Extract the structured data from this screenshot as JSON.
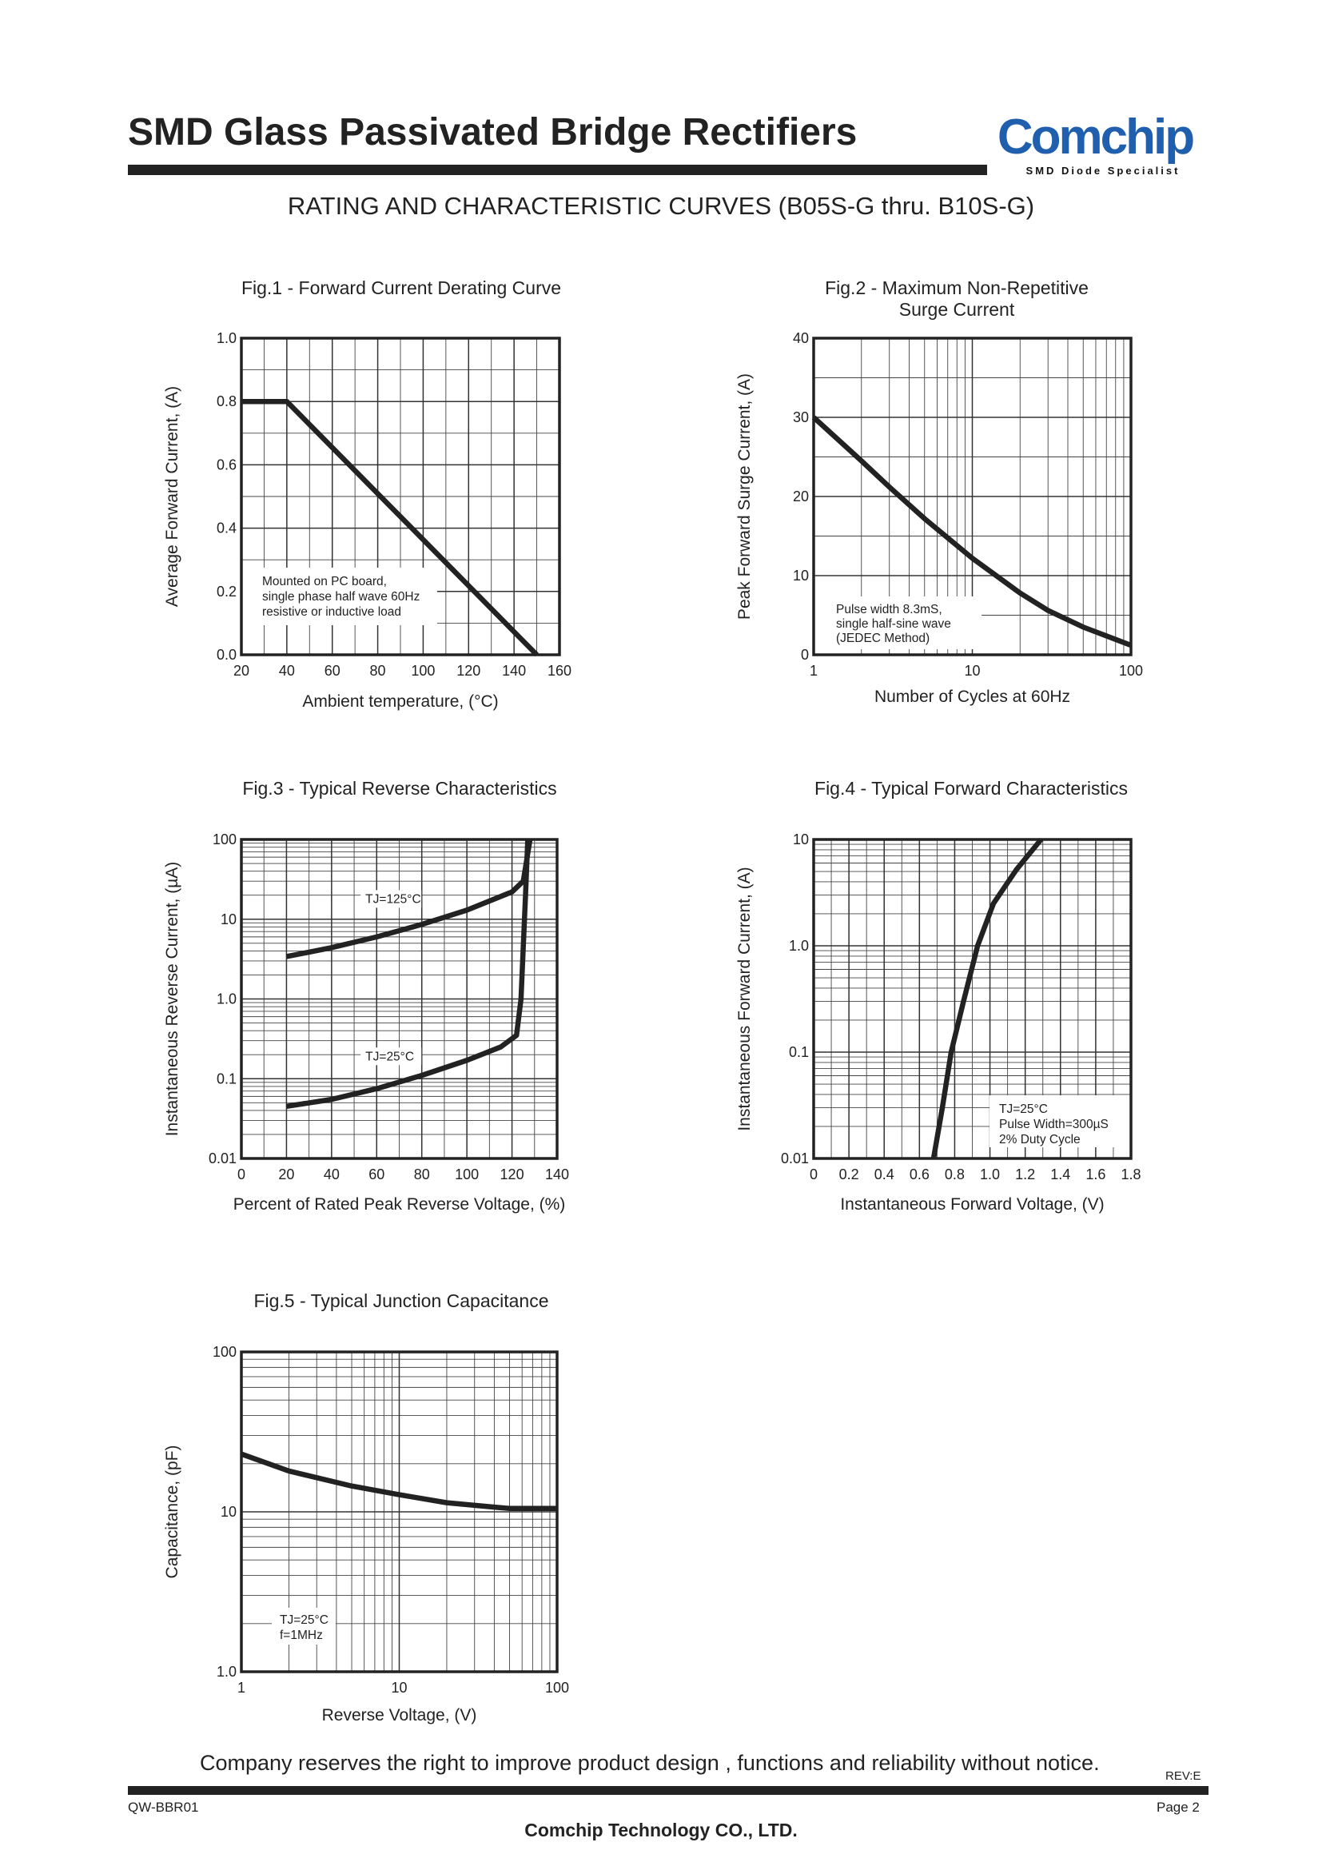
{
  "header": {
    "title": "SMD Glass Passivated Bridge Rectifiers",
    "subtitle": "RATING AND CHARACTERISTIC CURVES (B05S-G thru. B10S-G)"
  },
  "logo": {
    "name": "Comchip",
    "tagline": "SMD Diode Specialist",
    "color": "#1f5fae"
  },
  "footer": {
    "notice": "Company reserves the right to improve product design , functions and reliability without notice.",
    "revision": "REV:E",
    "doc_code": "QW-BBR01",
    "page": "Page 2",
    "company": "Comchip Technology CO., LTD."
  },
  "chart_data": [
    {
      "id": "fig1",
      "type": "line",
      "title": "Fig.1 - Forward Current Derating Curve",
      "xlabel": "Ambient temperature, (°C)",
      "ylabel": "Average Forward Current, (A)",
      "xscale": "linear",
      "yscale": "linear",
      "xlim": [
        20,
        160
      ],
      "ylim": [
        0.0,
        1.0
      ],
      "xticks": [
        20,
        40,
        60,
        80,
        100,
        120,
        140,
        160
      ],
      "xticklabels": [
        "20",
        "40",
        "60",
        "80",
        "100",
        "120",
        "140",
        "160"
      ],
      "yticks": [
        0,
        0.2,
        0.4,
        0.6,
        0.8,
        1.0
      ],
      "yticklabels": [
        "0.0",
        "0.2",
        "0.4",
        "0.6",
        "0.8",
        "1.0"
      ],
      "grid": true,
      "annotation": [
        "Mounted on PC board,",
        "single phase half wave 60Hz",
        "resistive or inductive load"
      ],
      "series": [
        {
          "x": [
            20,
            40,
            150
          ],
          "y": [
            0.8,
            0.8,
            0.0
          ]
        }
      ]
    },
    {
      "id": "fig2",
      "type": "line",
      "title": "Fig.2 - Maximum Non-Repetitive",
      "title2": "Surge Current",
      "xlabel": "Number of Cycles at 60Hz",
      "ylabel": "Peak Forward Surge Current, (A)",
      "xscale": "log",
      "yscale": "linear",
      "xlim": [
        1,
        100
      ],
      "ylim": [
        0,
        40
      ],
      "xticks": [
        1,
        10,
        100
      ],
      "xticklabels": [
        "1",
        "10",
        "100"
      ],
      "yticks": [
        0,
        10,
        20,
        30,
        40
      ],
      "yticklabels": [
        "0",
        "10",
        "20",
        "30",
        "40"
      ],
      "grid": true,
      "annotation": [
        "Pulse width 8.3mS,",
        "single half-sine wave",
        "(JEDEC Method)"
      ],
      "series": [
        {
          "x": [
            1,
            2,
            3,
            5,
            10,
            20,
            30,
            50,
            100
          ],
          "y": [
            30,
            24.5,
            21.2,
            17.2,
            12.2,
            7.8,
            5.6,
            3.5,
            1.2
          ]
        }
      ]
    },
    {
      "id": "fig3",
      "type": "line",
      "title": "Fig.3 - Typical Reverse Characteristics",
      "xlabel": "Percent of Rated Peak Reverse Voltage, (%)",
      "ylabel": "Instantaneous Reverse Current, (µA)",
      "xscale": "linear",
      "yscale": "log",
      "xlim": [
        0,
        140
      ],
      "ylim": [
        0.01,
        100
      ],
      "xticks": [
        0,
        20,
        40,
        60,
        80,
        100,
        120,
        140
      ],
      "xticklabels": [
        "0",
        "20",
        "40",
        "60",
        "80",
        "100",
        "120",
        "140"
      ],
      "yticks": [
        0.01,
        0.1,
        1,
        10,
        100
      ],
      "yticklabels": [
        "0.01",
        "0.1",
        "1.0",
        "10",
        "100"
      ],
      "grid": true,
      "series": [
        {
          "name": "TJ=125°C",
          "label_pos": [
            55,
            16
          ],
          "x": [
            20,
            40,
            60,
            80,
            100,
            120,
            125,
            128
          ],
          "y": [
            3.4,
            4.4,
            6.0,
            8.6,
            13,
            22,
            30,
            100
          ]
        },
        {
          "name": "TJ=25°C",
          "label_pos": [
            55,
            0.17
          ],
          "x": [
            20,
            40,
            60,
            80,
            100,
            115,
            122,
            124,
            126,
            127
          ],
          "y": [
            0.045,
            0.055,
            0.075,
            0.11,
            0.17,
            0.25,
            0.35,
            1.0,
            20,
            100
          ]
        }
      ]
    },
    {
      "id": "fig4",
      "type": "line",
      "title": "Fig.4 - Typical Forward Characteristics",
      "xlabel": "Instantaneous Forward Voltage, (V)",
      "ylabel": "Instantaneous Forward Current, (A)",
      "xscale": "linear",
      "yscale": "log",
      "xlim": [
        0,
        1.8
      ],
      "ylim": [
        0.01,
        10
      ],
      "xticks": [
        0,
        0.2,
        0.4,
        0.6,
        0.8,
        1.0,
        1.2,
        1.4,
        1.6,
        1.8
      ],
      "xticklabels": [
        "0",
        "0.2",
        "0.4",
        "0.6",
        "0.8",
        "1.0",
        "1.2",
        "1.4",
        "1.6",
        "1.8"
      ],
      "yticks": [
        0.01,
        0.1,
        1,
        10
      ],
      "yticklabels": [
        "0.01",
        "0.1",
        "1.0",
        "10"
      ],
      "grid": true,
      "annotation": [
        "TJ=25°C",
        "Pulse Width=300µS",
        "2% Duty Cycle"
      ],
      "series": [
        {
          "x": [
            0.68,
            0.73,
            0.78,
            0.85,
            0.93,
            1.02,
            1.15,
            1.29
          ],
          "y": [
            0.01,
            0.03,
            0.1,
            0.3,
            1.0,
            2.5,
            5.2,
            10
          ]
        }
      ]
    },
    {
      "id": "fig5",
      "type": "line",
      "title": "Fig.5 - Typical Junction Capacitance",
      "xlabel": "Reverse Voltage, (V)",
      "ylabel": "Capacitance, (pF)",
      "xscale": "log",
      "yscale": "log",
      "xlim": [
        1,
        100
      ],
      "ylim": [
        1.0,
        100
      ],
      "xticks": [
        1,
        10,
        100
      ],
      "xticklabels": [
        "1",
        "10",
        "100"
      ],
      "yticks": [
        1,
        10,
        100
      ],
      "yticklabels": [
        "1.0",
        "10",
        "100"
      ],
      "grid": true,
      "annotation": [
        "TJ=25°C",
        "f=1MHz"
      ],
      "series": [
        {
          "x": [
            1,
            2,
            5,
            10,
            20,
            40,
            50,
            70,
            100
          ],
          "y": [
            23,
            18,
            14.5,
            12.8,
            11.4,
            10.7,
            10.5,
            10.5,
            10.5
          ]
        }
      ]
    }
  ]
}
